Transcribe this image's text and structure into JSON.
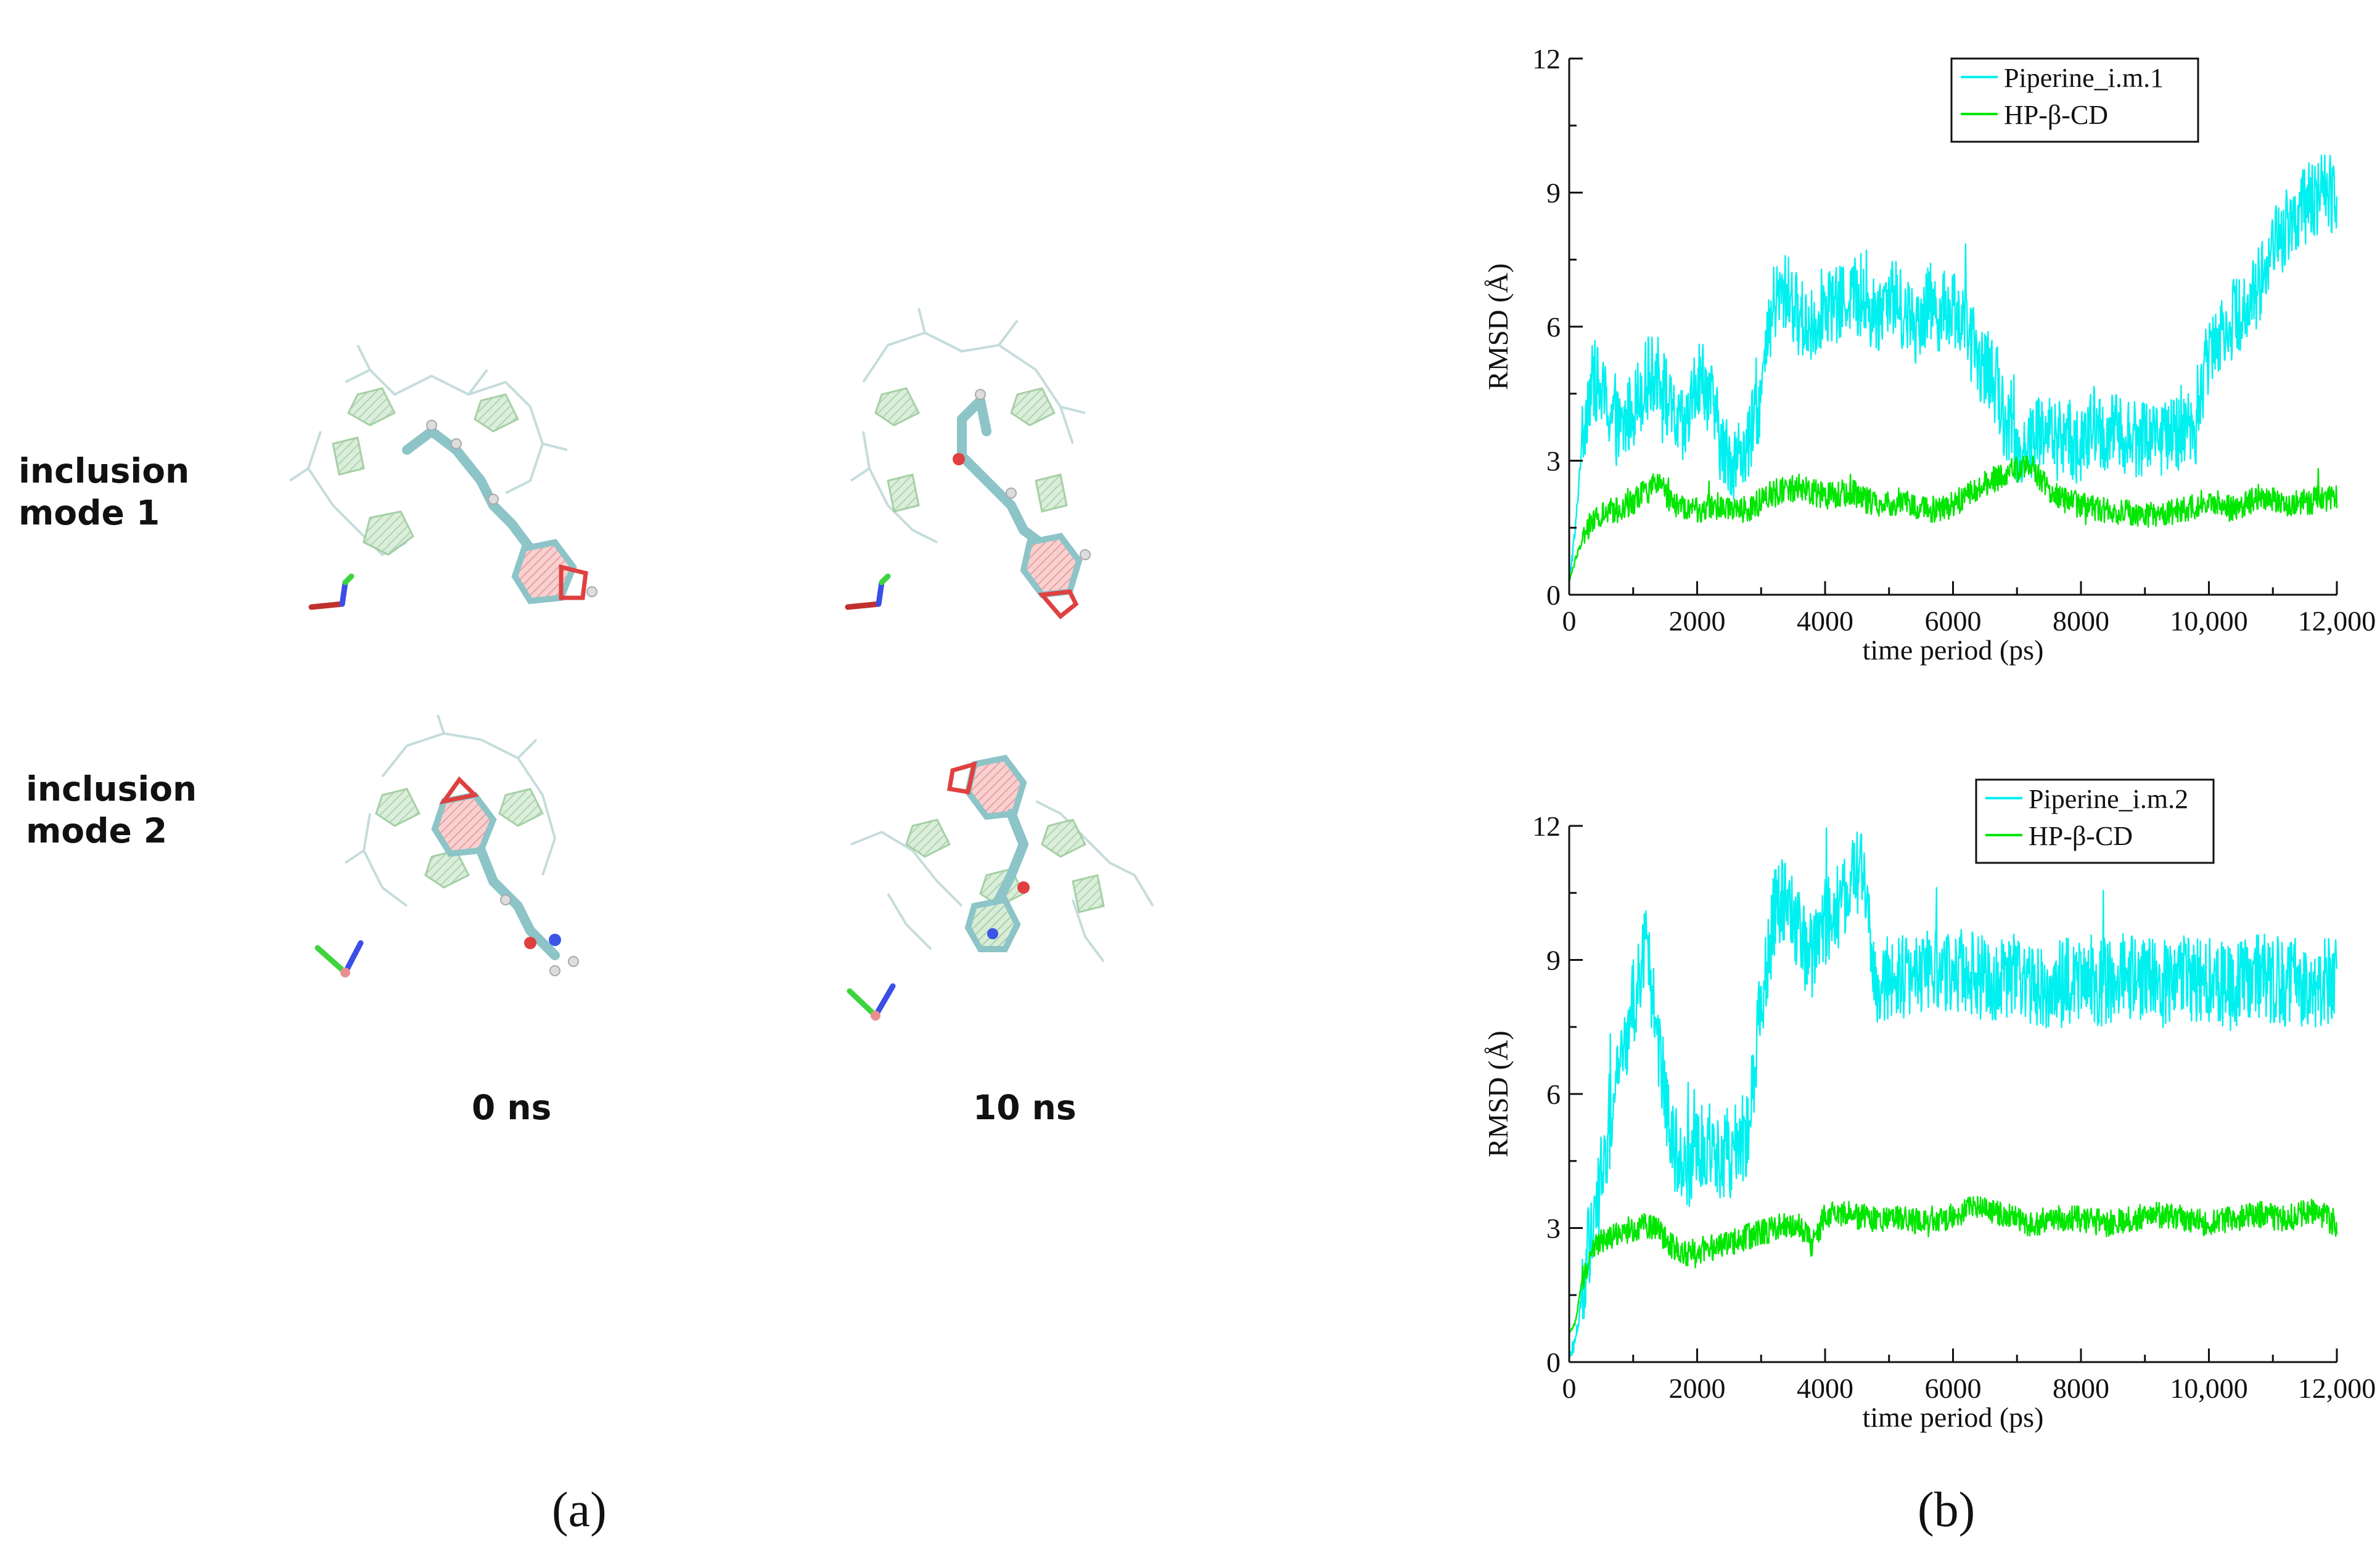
{
  "panel_a": {
    "row_labels": [
      [
        "inclusion",
        "mode 1"
      ],
      [
        "inclusion",
        "mode 2"
      ]
    ],
    "time_labels": [
      "0 ns",
      "10 ns"
    ],
    "caption": "(a)"
  },
  "panel_b": {
    "caption": "(b)"
  },
  "colors": {
    "piperine": "#00f0f0",
    "hpcd": "#00e600",
    "axes": "#111111"
  },
  "chart_data": [
    {
      "type": "line",
      "xlabel": "time period (ps)",
      "ylabel": "RMSD (Å)",
      "xlim": [
        0,
        12000
      ],
      "ylim": [
        0,
        12
      ],
      "xticks": [
        0,
        2000,
        4000,
        6000,
        8000,
        10000,
        12000
      ],
      "xtick_labels": [
        "0",
        "2000",
        "4000",
        "6000",
        "8000",
        "10,000",
        "12,000"
      ],
      "yticks": [
        0,
        3,
        6,
        9,
        12
      ],
      "ytick_labels": [
        "0",
        "3",
        "6",
        "9",
        "12"
      ],
      "legend_position": "top-right",
      "series": [
        {
          "name": "Piperine_i.m.1",
          "color": "#00f0f0",
          "x": [
            0,
            100,
            200,
            300,
            400,
            600,
            800,
            1000,
            1200,
            1400,
            1600,
            1800,
            2000,
            2200,
            2400,
            2600,
            2800,
            3000,
            3200,
            3400,
            3600,
            3800,
            4000,
            4200,
            4400,
            4600,
            4800,
            5000,
            5200,
            5400,
            5600,
            5800,
            6000,
            6200,
            6400,
            6600,
            6800,
            7000,
            7200,
            7400,
            7600,
            7800,
            8000,
            8200,
            8400,
            8600,
            8800,
            9000,
            9200,
            9400,
            9600,
            9800,
            10000,
            10200,
            10400,
            10600,
            10800,
            11000,
            11200,
            11400,
            11600,
            11800,
            12000
          ],
          "values": [
            0.3,
            1.5,
            3.5,
            4.5,
            4.8,
            4.2,
            3.6,
            4.2,
            4.8,
            5.0,
            4.0,
            3.6,
            4.8,
            4.5,
            3.2,
            3.0,
            3.3,
            4.5,
            6.5,
            6.8,
            6.2,
            6.0,
            6.6,
            6.4,
            6.8,
            6.5,
            6.2,
            6.8,
            6.4,
            6.0,
            6.6,
            6.3,
            6.5,
            6.0,
            5.2,
            5.0,
            4.0,
            3.2,
            3.4,
            3.8,
            3.4,
            3.6,
            3.2,
            3.8,
            3.5,
            3.7,
            3.4,
            3.6,
            3.6,
            3.5,
            3.7,
            3.8,
            5.5,
            6.0,
            6.2,
            6.5,
            7.0,
            7.8,
            8.2,
            8.6,
            8.8,
            9.0,
            9.0
          ],
          "noise_amplitude": 0.9
        },
        {
          "name": "HP-β-CD",
          "color": "#00e600",
          "x": [
            0,
            100,
            200,
            300,
            400,
            600,
            800,
            1000,
            1200,
            1400,
            1600,
            1800,
            2000,
            2400,
            2800,
            3200,
            3600,
            4000,
            4400,
            4800,
            5200,
            5600,
            6000,
            6400,
            6800,
            7200,
            7600,
            8000,
            8400,
            8800,
            9200,
            9600,
            10000,
            10400,
            10800,
            11200,
            11600,
            12000
          ],
          "values": [
            0.3,
            0.8,
            1.2,
            1.5,
            1.7,
            1.8,
            1.9,
            2.1,
            2.3,
            2.5,
            2.1,
            1.9,
            1.9,
            2.0,
            1.9,
            2.3,
            2.4,
            2.2,
            2.3,
            2.0,
            2.1,
            1.9,
            2.0,
            2.4,
            2.7,
            2.9,
            2.2,
            2.0,
            1.9,
            1.8,
            1.8,
            1.9,
            2.1,
            1.9,
            2.2,
            2.0,
            2.1,
            2.2
          ],
          "noise_amplitude": 0.3
        }
      ]
    },
    {
      "type": "line",
      "xlabel": "time period (ps)",
      "ylabel": "RMSD (Å)",
      "xlim": [
        0,
        12000
      ],
      "ylim": [
        0,
        12
      ],
      "xticks": [
        0,
        2000,
        4000,
        6000,
        8000,
        10000,
        12000
      ],
      "xtick_labels": [
        "0",
        "2000",
        "4000",
        "6000",
        "8000",
        "10,000",
        "12,000"
      ],
      "yticks": [
        0,
        3,
        6,
        9,
        12
      ],
      "ytick_labels": [
        "0",
        "3",
        "6",
        "9",
        "12"
      ],
      "legend_position": "top-right",
      "series": [
        {
          "name": "Piperine_i.m.2",
          "color": "#00f0f0",
          "x": [
            0,
            100,
            200,
            300,
            400,
            600,
            800,
            1000,
            1200,
            1400,
            1600,
            1800,
            2000,
            2200,
            2400,
            2600,
            2800,
            3000,
            3200,
            3400,
            3600,
            3800,
            4000,
            4200,
            4400,
            4600,
            4800,
            5200,
            5600,
            6000,
            6400,
            6800,
            7200,
            7600,
            8000,
            8400,
            8800,
            9200,
            9600,
            10000,
            10400,
            10800,
            11200,
            11600,
            12000
          ],
          "values": [
            0.2,
            0.5,
            1.5,
            2.5,
            3.2,
            5.0,
            6.5,
            8.0,
            9.5,
            7.0,
            5.0,
            4.2,
            4.8,
            5.0,
            4.5,
            4.8,
            5.2,
            8.0,
            10.0,
            10.5,
            9.5,
            9.0,
            9.8,
            10.2,
            10.8,
            11.0,
            8.5,
            8.6,
            8.7,
            8.8,
            8.6,
            8.7,
            8.5,
            8.4,
            8.6,
            8.5,
            8.7,
            8.4,
            8.7,
            8.5,
            8.4,
            8.6,
            8.5,
            8.5,
            8.5
          ],
          "noise_amplitude": 1.0
        },
        {
          "name": "HP-β-CD",
          "color": "#00e600",
          "x": [
            0,
            100,
            200,
            300,
            400,
            600,
            800,
            1000,
            1200,
            1400,
            1600,
            1800,
            2000,
            2400,
            2800,
            3200,
            3600,
            3800,
            4000,
            4400,
            4800,
            5200,
            5600,
            6000,
            6400,
            6800,
            7200,
            7600,
            8000,
            8400,
            8800,
            9200,
            9600,
            10000,
            10400,
            10800,
            11200,
            11600,
            12000
          ],
          "values": [
            0.6,
            0.9,
            1.8,
            2.3,
            2.6,
            2.8,
            2.9,
            3.0,
            3.1,
            2.9,
            2.6,
            2.4,
            2.5,
            2.6,
            2.8,
            3.0,
            3.1,
            2.6,
            3.3,
            3.3,
            3.2,
            3.2,
            3.1,
            3.3,
            3.5,
            3.3,
            3.1,
            3.2,
            3.2,
            3.1,
            3.2,
            3.3,
            3.2,
            3.1,
            3.2,
            3.3,
            3.2,
            3.4,
            3.1
          ],
          "noise_amplitude": 0.3
        }
      ]
    }
  ]
}
